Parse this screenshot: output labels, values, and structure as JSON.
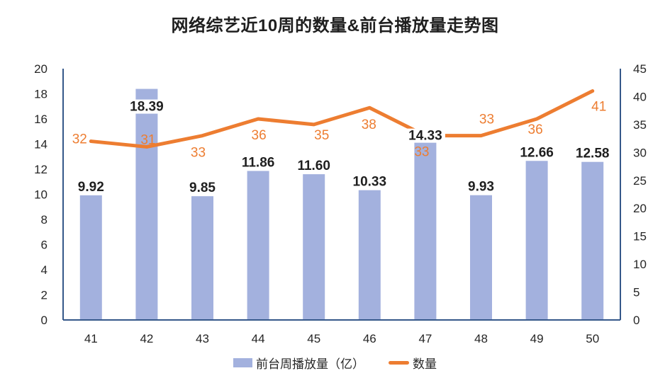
{
  "chart_data": {
    "type": "bar-line-combo",
    "title": "网络综艺近10周的数量&前台播放量走势图",
    "categories": [
      "41",
      "42",
      "43",
      "44",
      "45",
      "46",
      "47",
      "48",
      "49",
      "50"
    ],
    "series": [
      {
        "name": "前台周播放量（亿）",
        "type": "bar",
        "axis": "left",
        "color": "#a3b1de",
        "values": [
          9.92,
          18.39,
          9.85,
          11.86,
          11.6,
          10.33,
          14.33,
          9.93,
          12.66,
          12.58
        ],
        "labels": [
          "9.92",
          "18.39",
          "9.85",
          "11.86",
          "11.60",
          "10.33",
          "14.33",
          "9.93",
          "12.66",
          "12.58"
        ],
        "label_color": "#1f1f1f",
        "label_dy": [
          -12,
          25,
          -12,
          -12,
          -12,
          -12,
          -6,
          -12,
          -12,
          -12
        ]
      },
      {
        "name": "数量",
        "type": "line",
        "axis": "right",
        "color": "#ed7d31",
        "values": [
          32,
          31,
          33,
          36,
          35,
          38,
          33,
          33,
          36,
          41
        ],
        "labels": [
          "32",
          "31",
          "33",
          "36",
          "35",
          "38",
          "33",
          "33",
          "36",
          "41"
        ],
        "label_color": "#ed7d31",
        "label_offsets": [
          [
            -16,
            -3
          ],
          [
            2,
            -10
          ],
          [
            -6,
            24
          ],
          [
            1,
            23
          ],
          [
            11,
            15
          ],
          [
            -1,
            24
          ],
          [
            -5,
            23
          ],
          [
            8,
            -23
          ],
          [
            -2,
            15
          ],
          [
            9,
            22
          ]
        ]
      }
    ],
    "axes": {
      "left": {
        "min": 0,
        "max": 20,
        "step": 2,
        "ticks": [
          "0",
          "2",
          "4",
          "6",
          "8",
          "10",
          "12",
          "14",
          "16",
          "18",
          "20"
        ]
      },
      "right": {
        "min": 0,
        "max": 45,
        "step": 5,
        "ticks": [
          "0",
          "5",
          "10",
          "15",
          "20",
          "25",
          "30",
          "35",
          "40",
          "45"
        ]
      }
    },
    "grid": false,
    "legend_position": "bottom",
    "colors": {
      "axis_line": "#35588a",
      "tick_text": "#262626",
      "title_text": "#1f1f1f",
      "background": "#ffffff"
    }
  }
}
